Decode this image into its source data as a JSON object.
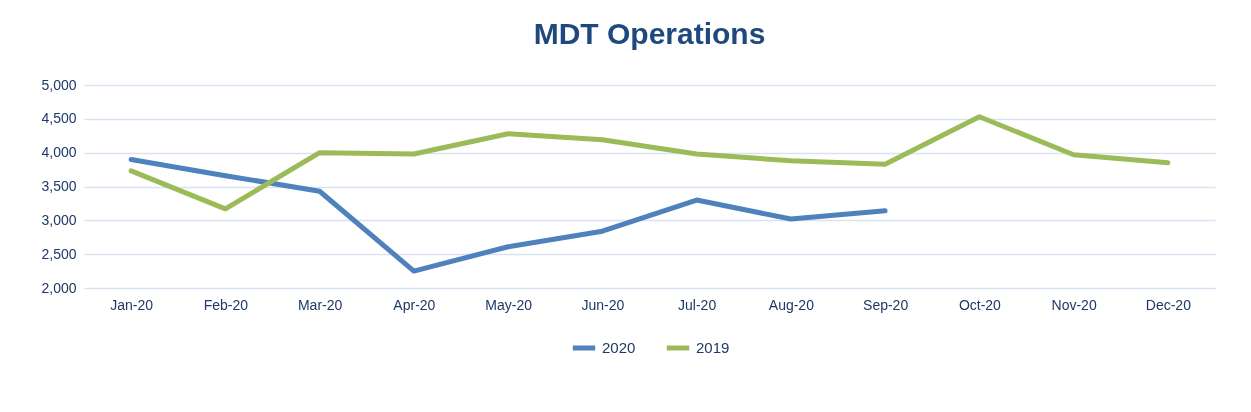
{
  "chart_data": {
    "type": "line",
    "title": "MDT Operations",
    "categories": [
      "Jan-20",
      "Feb-20",
      "Mar-20",
      "Apr-20",
      "May-20",
      "Jun-20",
      "Jul-20",
      "Aug-20",
      "Sep-20",
      "Oct-20",
      "Nov-20",
      "Dec-20"
    ],
    "series": [
      {
        "name": "2020",
        "color": "#4f81bd",
        "values": [
          3900,
          3660,
          3430,
          2250,
          2610,
          2840,
          3300,
          3020,
          3140,
          null,
          null,
          null
        ]
      },
      {
        "name": "2019",
        "color": "#9bbb59",
        "values": [
          3730,
          3170,
          4000,
          3980,
          4280,
          4190,
          3980,
          3880,
          3830,
          4530,
          3970,
          3850
        ]
      }
    ],
    "ylim": [
      2000,
      5000
    ],
    "yticks": [
      {
        "value": 2000,
        "label": "2,000"
      },
      {
        "value": 2500,
        "label": "2,500"
      },
      {
        "value": 3000,
        "label": "3,000"
      },
      {
        "value": 3500,
        "label": "3,500"
      },
      {
        "value": 4000,
        "label": "4,000"
      },
      {
        "value": 4500,
        "label": "4,500"
      },
      {
        "value": 5000,
        "label": "5,000"
      }
    ],
    "grid": "y",
    "legend": "bottom",
    "marker": "none",
    "line_style": "solid"
  }
}
